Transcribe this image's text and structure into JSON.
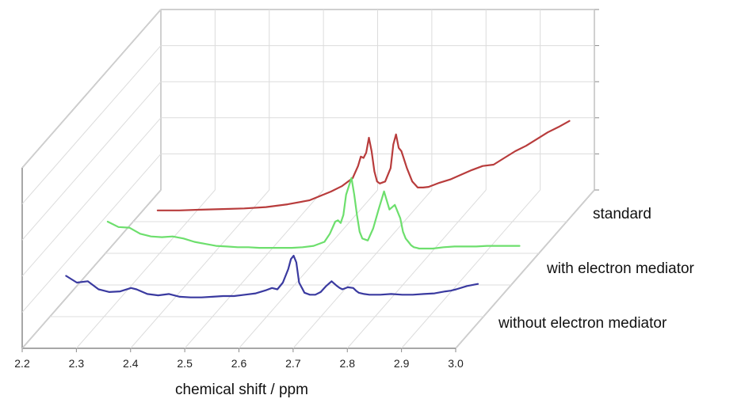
{
  "chart_data": {
    "type": "line",
    "view": "3d-waterfall",
    "title": "",
    "xlabel": "chemical shift / ppm",
    "xlim": [
      2.2,
      3.0
    ],
    "x_ticks": [
      "2.2",
      "2.3",
      "2.4",
      "2.5",
      "2.6",
      "2.7",
      "2.8",
      "2.9",
      "3.0"
    ],
    "grid": true,
    "legend": "right",
    "series": [
      {
        "name": "without electron mediator",
        "color": "#3a3aa0",
        "x": [
          2.24,
          2.26,
          2.28,
          2.3,
          2.32,
          2.34,
          2.36,
          2.37,
          2.39,
          2.41,
          2.43,
          2.45,
          2.47,
          2.49,
          2.51,
          2.53,
          2.55,
          2.57,
          2.59,
          2.61,
          2.62,
          2.63,
          2.64,
          2.65,
          2.655,
          2.66,
          2.665,
          2.67,
          2.68,
          2.69,
          2.7,
          2.71,
          2.72,
          2.73,
          2.74,
          2.745,
          2.75,
          2.76,
          2.77,
          2.775,
          2.78,
          2.79,
          2.8,
          2.82,
          2.84,
          2.86,
          2.88,
          2.9,
          2.92,
          2.94,
          2.95,
          2.96,
          2.98,
          3.0
        ],
        "y": [
          0.7,
          0.6,
          0.62,
          0.5,
          0.46,
          0.47,
          0.52,
          0.5,
          0.43,
          0.41,
          0.43,
          0.39,
          0.38,
          0.38,
          0.39,
          0.4,
          0.4,
          0.42,
          0.44,
          0.49,
          0.52,
          0.5,
          0.6,
          0.8,
          0.95,
          1.0,
          0.9,
          0.6,
          0.45,
          0.42,
          0.42,
          0.46,
          0.55,
          0.62,
          0.55,
          0.52,
          0.5,
          0.53,
          0.52,
          0.48,
          0.45,
          0.43,
          0.42,
          0.42,
          0.43,
          0.42,
          0.42,
          0.43,
          0.44,
          0.47,
          0.48,
          0.5,
          0.55,
          0.58
        ]
      },
      {
        "name": "with electron mediator",
        "color": "#6ddf6d",
        "x": [
          2.24,
          2.26,
          2.28,
          2.3,
          2.32,
          2.34,
          2.36,
          2.38,
          2.4,
          2.42,
          2.44,
          2.46,
          2.48,
          2.5,
          2.52,
          2.54,
          2.56,
          2.58,
          2.6,
          2.62,
          2.64,
          2.65,
          2.66,
          2.665,
          2.67,
          2.675,
          2.68,
          2.69,
          2.695,
          2.7,
          2.705,
          2.71,
          2.72,
          2.73,
          2.74,
          2.75,
          2.76,
          2.77,
          2.78,
          2.785,
          2.79,
          2.795,
          2.8,
          2.805,
          2.81,
          2.815,
          2.82,
          2.83,
          2.84,
          2.86,
          2.88,
          2.9,
          2.92,
          2.94,
          2.96,
          2.98,
          3.0
        ],
        "y": [
          0.8,
          0.72,
          0.71,
          0.62,
          0.58,
          0.57,
          0.58,
          0.55,
          0.5,
          0.47,
          0.44,
          0.43,
          0.42,
          0.42,
          0.41,
          0.41,
          0.41,
          0.41,
          0.42,
          0.44,
          0.5,
          0.62,
          0.8,
          0.82,
          0.78,
          0.9,
          1.2,
          1.45,
          1.2,
          0.9,
          0.65,
          0.55,
          0.52,
          0.7,
          0.98,
          1.25,
          0.98,
          1.05,
          0.85,
          0.65,
          0.55,
          0.5,
          0.45,
          0.42,
          0.41,
          0.4,
          0.4,
          0.4,
          0.4,
          0.42,
          0.43,
          0.43,
          0.43,
          0.44,
          0.44,
          0.44,
          0.44
        ]
      },
      {
        "name": "standard",
        "color": "#b83c3c",
        "x": [
          2.24,
          2.28,
          2.32,
          2.36,
          2.4,
          2.44,
          2.48,
          2.52,
          2.56,
          2.58,
          2.6,
          2.61,
          2.615,
          2.62,
          2.625,
          2.63,
          2.635,
          2.64,
          2.645,
          2.65,
          2.66,
          2.67,
          2.675,
          2.68,
          2.685,
          2.69,
          2.7,
          2.71,
          2.72,
          2.73,
          2.74,
          2.75,
          2.76,
          2.78,
          2.8,
          2.82,
          2.84,
          2.86,
          2.88,
          2.9,
          2.92,
          2.94,
          2.96,
          2.98,
          3.0
        ],
        "y": [
          0.12,
          0.12,
          0.13,
          0.14,
          0.15,
          0.17,
          0.21,
          0.27,
          0.4,
          0.48,
          0.6,
          0.78,
          0.92,
          0.9,
          0.98,
          1.2,
          1.0,
          0.7,
          0.55,
          0.52,
          0.55,
          0.75,
          1.1,
          1.25,
          1.05,
          1.0,
          0.75,
          0.55,
          0.46,
          0.46,
          0.47,
          0.5,
          0.53,
          0.58,
          0.65,
          0.72,
          0.78,
          0.8,
          0.9,
          1.0,
          1.08,
          1.18,
          1.28,
          1.36,
          1.45
        ]
      }
    ]
  }
}
